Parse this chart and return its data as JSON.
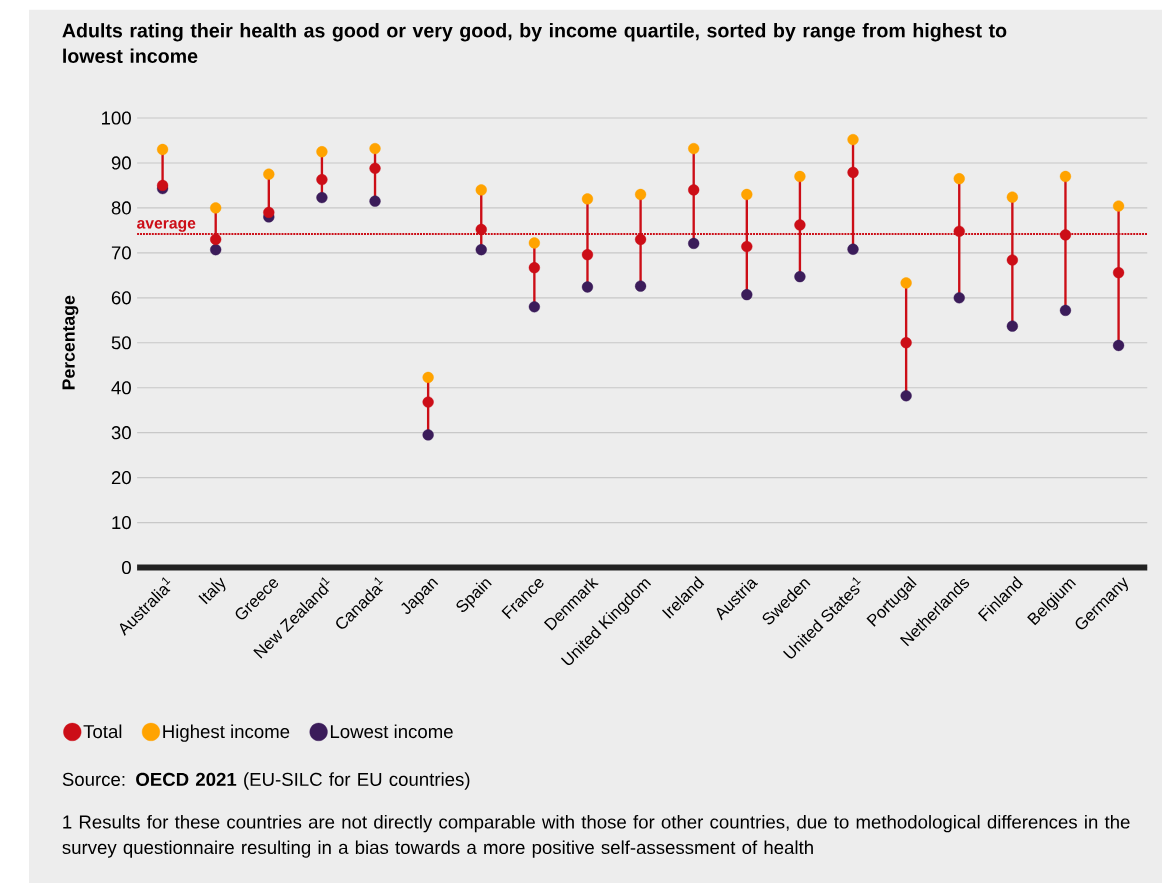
{
  "chart_data": {
    "type": "scatter",
    "title": "Adults rating their health as good or very good, by income quartile, sorted by range from highest to lowest income",
    "ylabel": "Percentage",
    "categories": [
      "Australia$^{1}$",
      "Italy",
      "Greece",
      "New Zealand$^{1}$",
      "Canada$^{1}$",
      "Japan",
      "Spain",
      "France",
      "Denmark",
      "United Kingdom",
      "Ireland",
      "Austria",
      "Sweden",
      "United States$^{1}$",
      "Portugal",
      "Netherlands",
      "Finland",
      "Belgium",
      "Germany"
    ],
    "series": [
      {
        "name": "Total",
        "color": "#cc0e17",
        "values": [
          85,
          73,
          79,
          86.3,
          88.8,
          36.8,
          75.2,
          66.7,
          69.6,
          73,
          84,
          71.4,
          76.2,
          87.9,
          50,
          74.8,
          68.4,
          74,
          65.6
        ]
      },
      {
        "name": "Highest income",
        "color": "#ffa300",
        "values": [
          93,
          80,
          87.5,
          92.5,
          93.2,
          42.3,
          84,
          72.2,
          82,
          83,
          93.2,
          83,
          87,
          95.2,
          63.3,
          86.5,
          82.4,
          87,
          80.4
        ]
      },
      {
        "name": "Lowest income",
        "color": "#3b1c5a",
        "values": [
          84.3,
          70.7,
          78,
          82.3,
          81.5,
          29.5,
          70.7,
          58,
          62.4,
          62.6,
          72.1,
          60.7,
          64.7,
          70.8,
          38.2,
          60,
          53.7,
          57.2,
          49.4
        ]
      }
    ],
    "ylim": [
      0,
      100
    ],
    "yticks": [
      0,
      10,
      20,
      30,
      40,
      50,
      60,
      70,
      80,
      90,
      100
    ],
    "grid": "y",
    "legend": "bottom",
    "marker": "circle",
    "ref_lines": [
      {
        "axis": "y",
        "value": 74.2,
        "label": "average",
        "color": "#cc0e17",
        "line_style": "dotted"
      }
    ],
    "annotations": [
      "Source: **OECD 2021** (EU-SILC for EU countries)",
      "1  Results for these countries are not directly comparable with those for other countries, due to methodological differences in the survey questionnaire resulting in a bias towards a more positive self-assessment of health"
    ]
  }
}
